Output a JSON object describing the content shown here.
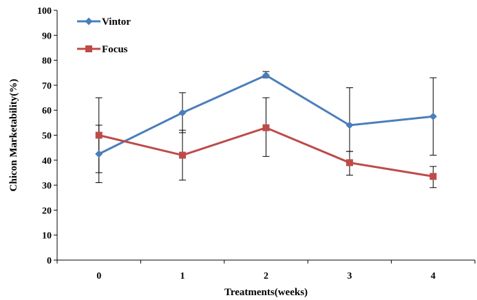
{
  "chart_data": {
    "type": "line",
    "xlabel": "Treatments(weeks)",
    "ylabel": "Chicon Marketability(%)",
    "x": [
      "0",
      "1",
      "2",
      "3",
      "4"
    ],
    "ylim": [
      0,
      100
    ],
    "yticks": [
      "0",
      "10",
      "20",
      "30",
      "40",
      "50",
      "60",
      "70",
      "80",
      "90",
      "100"
    ],
    "grid": false,
    "legend_position": "top-left",
    "series": [
      {
        "name": "Vintor",
        "color": "#4a7ebb",
        "marker": "diamond",
        "values": [
          42.5,
          59,
          74,
          54,
          57.5
        ],
        "error_low": [
          31,
          51,
          73,
          43.5,
          42
        ],
        "error_high": [
          54,
          67,
          75.5,
          69,
          73
        ]
      },
      {
        "name": "Focus",
        "color": "#be4b48",
        "marker": "square",
        "values": [
          50,
          42,
          53,
          39,
          33.5
        ],
        "error_low": [
          35,
          32,
          41.5,
          34,
          29
        ],
        "error_high": [
          65,
          52,
          65,
          43.5,
          37.5
        ]
      }
    ]
  }
}
